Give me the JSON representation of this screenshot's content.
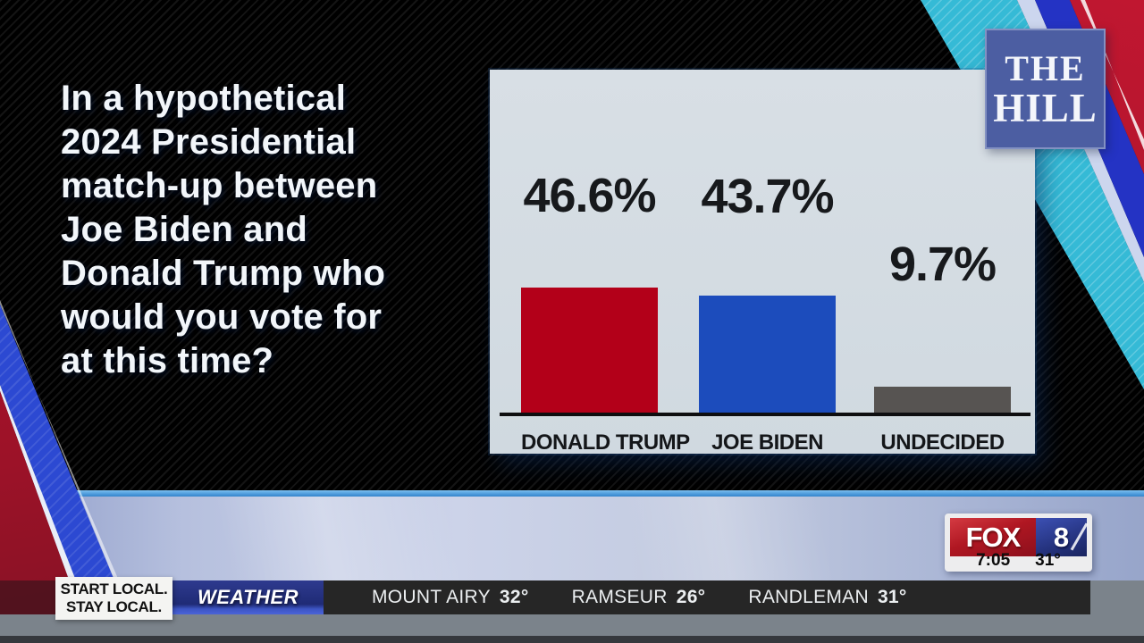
{
  "question": "In a hypothetical\n2024 Presidential\nmatch-up between\nJoe Biden and\nDonald Trump who\nwould you vote for\nat this time?",
  "source_logo": {
    "line1": "THE",
    "line2": "HILL"
  },
  "chart_data": {
    "type": "bar",
    "title": "In a hypothetical 2024 Presidential match-up between Joe Biden and Donald Trump who would you vote for at this time?",
    "categories": [
      "DONALD TRUMP",
      "JOE BIDEN",
      "UNDECIDED"
    ],
    "values": [
      46.6,
      43.7,
      9.7
    ],
    "value_labels": [
      "46.6%",
      "43.7%",
      "9.7%"
    ],
    "colors": [
      "#b30019",
      "#1c4cbc",
      "#575452"
    ],
    "xlabel": "",
    "ylabel": "",
    "ylim": [
      0,
      50
    ],
    "grid": false,
    "legend": "none",
    "panel_bg": "#d3dce2"
  },
  "station": {
    "name": "FOX",
    "number": "8",
    "time": "7:05",
    "temp": "31°"
  },
  "ticker": {
    "promo_line1": "START LOCAL.",
    "promo_line2": "STAY LOCAL.",
    "category": "WEATHER",
    "items": [
      {
        "city": "MOUNT AIRY",
        "temp": "32°"
      },
      {
        "city": "RAMSEUR",
        "temp": "26°"
      },
      {
        "city": "RANDLEMAN",
        "temp": "31°"
      }
    ]
  },
  "colors": {
    "background_blue": "#2f8bd3",
    "ribbon_red": "#b01430",
    "ribbon_blue": "#2c49d2",
    "ribbon_cyan": "#35bad6",
    "hill_logo_blue": "#4c5ea2",
    "ticker_dark": "#262626",
    "weather_box_blue": "#273379"
  }
}
